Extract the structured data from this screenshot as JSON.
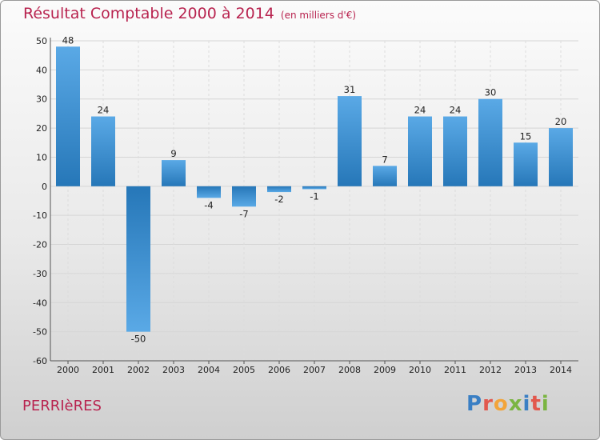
{
  "header": {
    "title": "Résultat Comptable 2000 à 2014",
    "subtitle": "(en milliers d'€)"
  },
  "footer": {
    "town": "PERRIèRES",
    "brand_letters": [
      "P",
      "r",
      "o",
      "x",
      "i",
      "t",
      "i"
    ]
  },
  "colors": {
    "bar_light": "#5aa9e6",
    "bar_dark": "#2677b8",
    "title": "#b8234f",
    "brand": [
      "#3a7fc4",
      "#e2584d",
      "#f2a43a",
      "#7bb542",
      "#3a7fc4",
      "#e2584d",
      "#7bb542"
    ]
  },
  "chart_data": {
    "type": "bar",
    "title": "Résultat Comptable 2000 à 2014",
    "categories": [
      "2000",
      "2001",
      "2002",
      "2003",
      "2004",
      "2005",
      "2006",
      "2007",
      "2008",
      "2009",
      "2010",
      "2011",
      "2012",
      "2013",
      "2014"
    ],
    "values": [
      48,
      24,
      -50,
      9,
      -4,
      -7,
      -2,
      -1,
      31,
      7,
      24,
      24,
      30,
      15,
      20
    ],
    "ylim": [
      -60,
      50
    ],
    "yticks": [
      50,
      40,
      30,
      20,
      10,
      0,
      -10,
      -20,
      -30,
      -40,
      -50,
      -60
    ],
    "grid": true,
    "xlabel": "",
    "ylabel": ""
  }
}
